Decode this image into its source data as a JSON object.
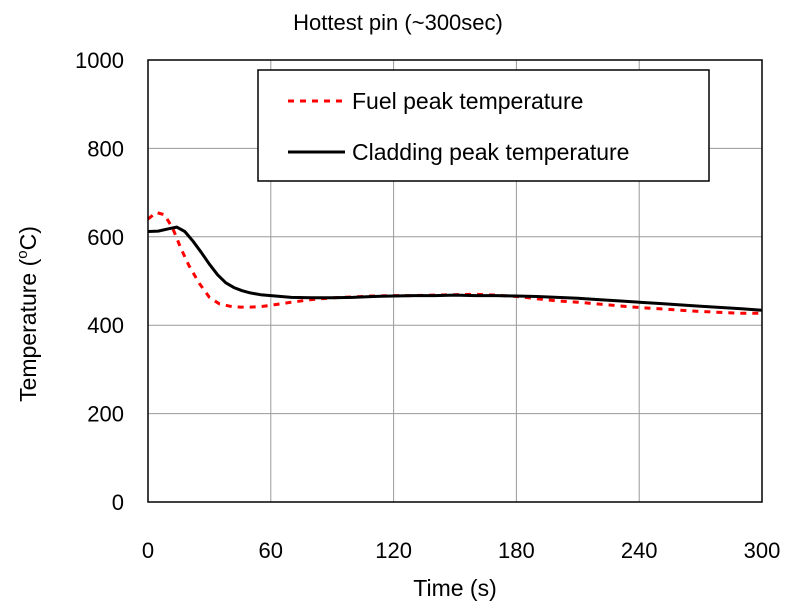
{
  "chart_data": {
    "type": "line",
    "title": "Hottest pin (~300sec)",
    "xlabel": "Time (s)",
    "ylabel_main": "Temperature (",
    "ylabel_sup": "o",
    "ylabel_tail": "C)",
    "xlim": [
      0,
      300
    ],
    "ylim": [
      0,
      1000
    ],
    "xticks": [
      "0",
      "60",
      "120",
      "180",
      "240",
      "300"
    ],
    "yticks": [
      "0",
      "200",
      "400",
      "600",
      "800",
      "1000"
    ],
    "grid": true,
    "legend_position": "top-right",
    "series": [
      {
        "name": "Fuel peak temperature",
        "color": "#ff0000",
        "style": "dashed",
        "x": [
          0,
          4,
          8,
          12,
          16,
          20,
          25,
          30,
          35,
          40,
          45,
          50,
          55,
          60,
          70,
          80,
          90,
          100,
          110,
          120,
          130,
          140,
          150,
          160,
          170,
          180,
          190,
          200,
          210,
          220,
          230,
          240,
          250,
          260,
          270,
          280,
          290,
          300
        ],
        "y": [
          640,
          655,
          650,
          620,
          575,
          535,
          495,
          463,
          448,
          443,
          441,
          441,
          442,
          445,
          452,
          458,
          462,
          464,
          466,
          467,
          467,
          468,
          469,
          470,
          468,
          465,
          460,
          455,
          452,
          448,
          444,
          440,
          437,
          434,
          431,
          429,
          427,
          427
        ]
      },
      {
        "name": "Cladding peak temperature",
        "color": "#000000",
        "style": "solid",
        "x": [
          0,
          5,
          10,
          14,
          18,
          22,
          26,
          30,
          34,
          38,
          42,
          46,
          50,
          55,
          60,
          70,
          80,
          90,
          100,
          110,
          120,
          130,
          140,
          150,
          160,
          170,
          180,
          190,
          200,
          210,
          220,
          230,
          240,
          250,
          260,
          270,
          280,
          290,
          300
        ],
        "y": [
          612,
          613,
          618,
          622,
          612,
          590,
          565,
          538,
          514,
          496,
          485,
          478,
          473,
          469,
          467,
          463,
          462,
          462,
          463,
          465,
          466,
          467,
          467,
          468,
          467,
          467,
          466,
          465,
          463,
          461,
          458,
          455,
          452,
          449,
          446,
          443,
          440,
          437,
          434
        ]
      }
    ]
  }
}
